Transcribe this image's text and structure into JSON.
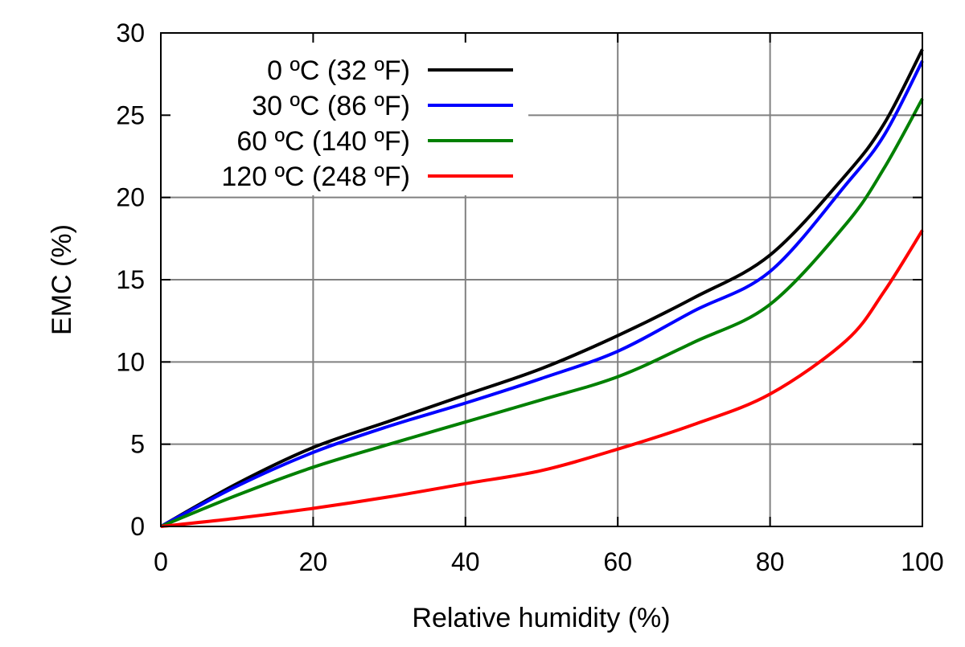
{
  "chart_data": {
    "type": "line",
    "title": "",
    "xlabel": "Relative humidity (%)",
    "ylabel": "EMC (%)",
    "xlim": [
      0,
      100
    ],
    "ylim": [
      0,
      30
    ],
    "xticks": [
      0,
      20,
      40,
      60,
      80,
      100
    ],
    "yticks": [
      0,
      5,
      10,
      15,
      20,
      25,
      30
    ],
    "grid": true,
    "legend_position": "top-left",
    "x": [
      0,
      10,
      20,
      30,
      40,
      50,
      60,
      70,
      80,
      90,
      95,
      100
    ],
    "series": [
      {
        "name": "0 ºC (32 ºF)",
        "color": "#000000",
        "values": [
          0,
          2.6,
          4.8,
          6.4,
          8.0,
          9.6,
          11.6,
          13.9,
          16.5,
          21.4,
          24.5,
          29.0
        ]
      },
      {
        "name": "30 ºC (86 ºF)",
        "color": "#0000ff",
        "values": [
          0,
          2.45,
          4.5,
          6.1,
          7.5,
          9.0,
          10.65,
          13.1,
          15.5,
          20.8,
          23.8,
          28.3
        ]
      },
      {
        "name": "60 ºC (140 ºF)",
        "color": "#008000",
        "values": [
          0,
          1.9,
          3.6,
          5.0,
          6.35,
          7.7,
          9.1,
          11.2,
          13.5,
          18.4,
          21.8,
          26.0
        ]
      },
      {
        "name": "120 ºC (248 ºF)",
        "color": "#ff0000",
        "values": [
          0,
          0.5,
          1.1,
          1.8,
          2.6,
          3.4,
          4.7,
          6.2,
          8.05,
          11.3,
          14.3,
          18.0
        ]
      }
    ]
  }
}
